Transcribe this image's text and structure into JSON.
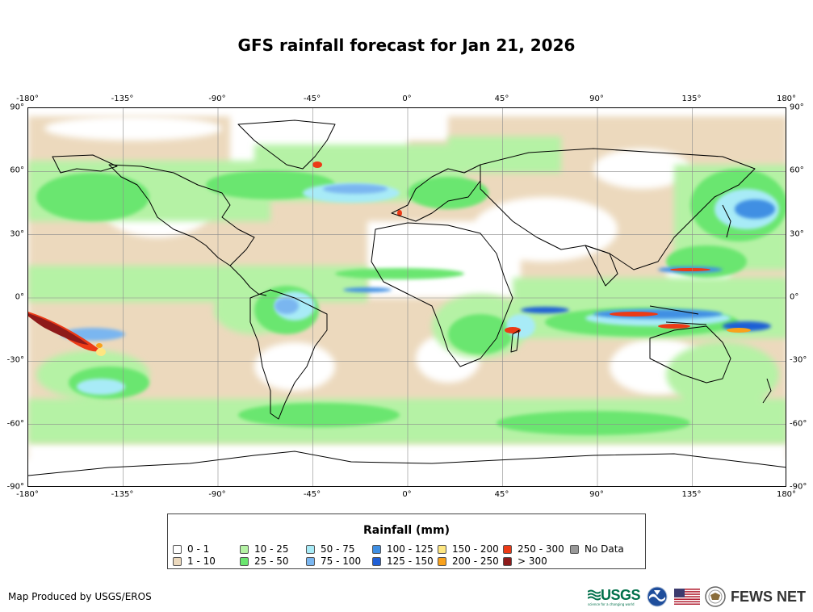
{
  "title": "GFS rainfall forecast for Jan 21, 2026",
  "map": {
    "longitude_ticks": [
      "-180°",
      "-135°",
      "-90°",
      "-45°",
      "0°",
      "45°",
      "90°",
      "135°",
      "180°"
    ],
    "latitude_ticks": [
      "90°",
      "60°",
      "30°",
      "0°",
      "-30°",
      "-60°",
      "-90°"
    ],
    "grid": true,
    "projection": "equirectangular"
  },
  "legend": {
    "title": "Rainfall (mm)",
    "items": [
      {
        "label": "0 - 1",
        "color": "#ffffff"
      },
      {
        "label": "1 - 10",
        "color": "#ecd9bd"
      },
      {
        "label": "10 - 25",
        "color": "#b5f2a5"
      },
      {
        "label": "25 - 50",
        "color": "#6ae66f"
      },
      {
        "label": "50 - 75",
        "color": "#a8ebf7"
      },
      {
        "label": "75 - 100",
        "color": "#7ab6f0"
      },
      {
        "label": "100 - 125",
        "color": "#3f8fe3"
      },
      {
        "label": "125 - 150",
        "color": "#1f5fd6"
      },
      {
        "label": "150 - 200",
        "color": "#fde681"
      },
      {
        "label": "200 - 250",
        "color": "#f9a11b"
      },
      {
        "label": "250 - 300",
        "color": "#ec3a16"
      },
      {
        "label": "> 300",
        "color": "#8e1a1a"
      },
      {
        "label": "No Data",
        "color": "#999999"
      }
    ]
  },
  "footer": {
    "credit": "Map Produced by USGS/EROS",
    "logos": [
      "USGS",
      "NOAA",
      "US flag",
      "State Department seal",
      "FEWS NET"
    ],
    "usgs_label": "USGS",
    "usgs_tagline": "science for a changing world",
    "fews_label": "FEWS NET"
  }
}
